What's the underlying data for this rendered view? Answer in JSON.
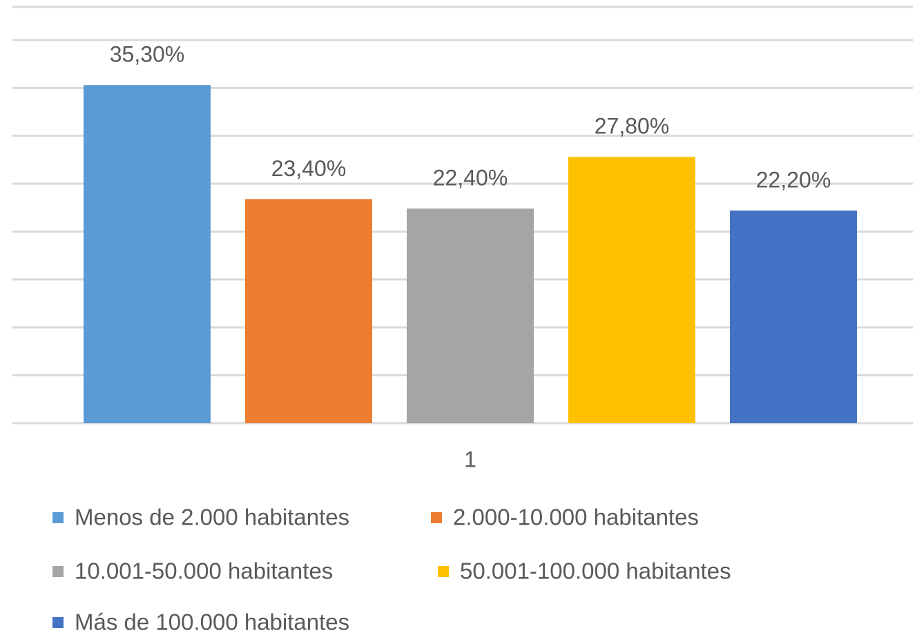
{
  "chart_data": {
    "type": "bar",
    "categories": [
      "1"
    ],
    "series": [
      {
        "name": "Menos de 2.000 habitantes",
        "color": "#5b9bd5",
        "values": [
          35.3
        ],
        "value_labels": [
          "35,30%"
        ]
      },
      {
        "name": "2.000-10.000 habitantes",
        "color": "#ed7d31",
        "values": [
          23.4
        ],
        "value_labels": [
          "23,40%"
        ]
      },
      {
        "name": "10.001-50.000 habitantes",
        "color": "#a5a5a5",
        "values": [
          22.4
        ],
        "value_labels": [
          "22,40%"
        ]
      },
      {
        "name": "50.001-100.000 habitantes",
        "color": "#ffc000",
        "values": [
          27.8
        ],
        "value_labels": [
          "27,80%"
        ]
      },
      {
        "name": "Más de 100.000 habitantes",
        "color": "#4472c4",
        "values": [
          22.2
        ],
        "value_labels": [
          "22,20%"
        ]
      }
    ],
    "ylim": [
      0,
      40
    ],
    "yticks": [
      0,
      5,
      10,
      15,
      20,
      25,
      30,
      35,
      40
    ],
    "grid": true,
    "legend": "bottom"
  }
}
